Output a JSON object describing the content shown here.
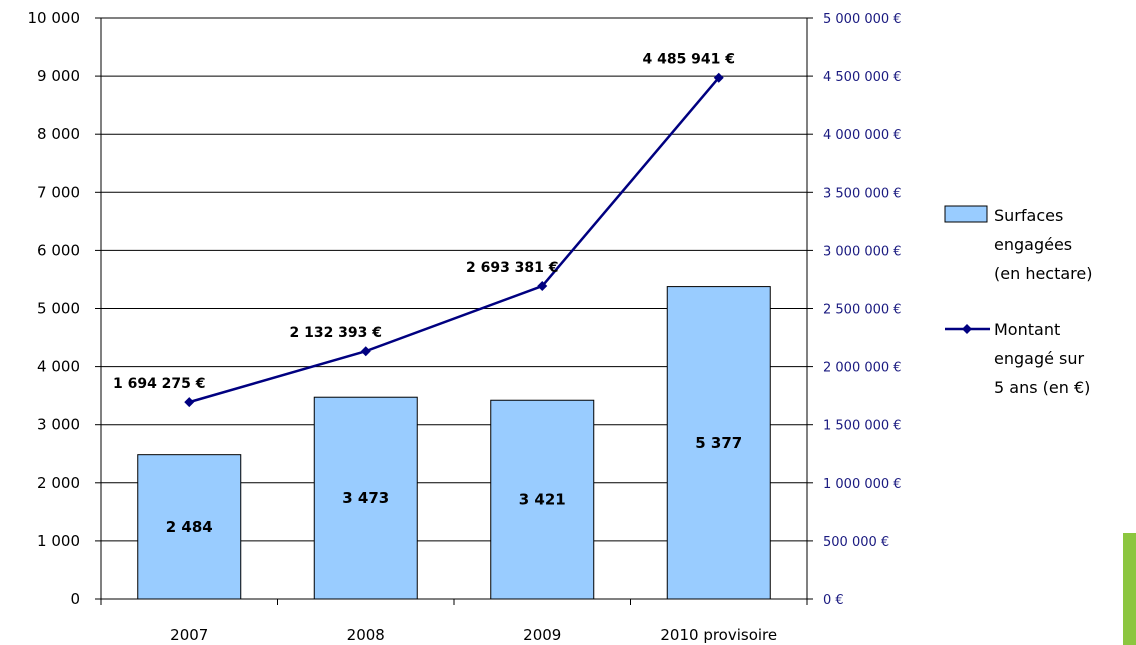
{
  "chart_data": {
    "type": "bar",
    "categories": [
      "2007",
      "2008",
      "2009",
      "2010 provisoire"
    ],
    "series": [
      {
        "name": "Surfaces engagées (en hectare)",
        "chart_type": "bar",
        "axis": "left",
        "values": [
          2484,
          3473,
          3421,
          5377
        ],
        "value_labels": [
          "2 484",
          "3 473",
          "3 421",
          "5 377"
        ]
      },
      {
        "name": "Montant engagé sur 5 ans (en €)",
        "chart_type": "line",
        "axis": "right",
        "values": [
          1694275,
          2132393,
          2693381,
          4485941
        ],
        "value_labels": [
          "1 694 275 €",
          "2 132 393 €",
          "2 693 381 €",
          "4 485 941 €"
        ]
      }
    ],
    "y_left": {
      "min": 0,
      "max": 10000,
      "step": 1000,
      "ticks": [
        "0",
        "1 000",
        "2 000",
        "3 000",
        "4 000",
        "5 000",
        "6 000",
        "7 000",
        "8 000",
        "9 000",
        "10 000"
      ]
    },
    "y_right": {
      "min": 0,
      "max": 5000000,
      "step": 500000,
      "ticks": [
        "0 €",
        "500 000 €",
        "1 000 000 €",
        "1 500 000 €",
        "2 000 000 €",
        "2 500 000 €",
        "3 000 000 €",
        "3 500 000 €",
        "4 000 000 €",
        "4 500 000 €",
        "5 000 000 €"
      ]
    },
    "legend": {
      "placement": "right",
      "entries": [
        [
          "Surfaces",
          "engagées",
          "(en hectare)"
        ],
        [
          "Montant",
          "engagé sur",
          "5 ans (en €)"
        ]
      ]
    },
    "grid": true,
    "title": "",
    "xlabel": "",
    "ylabel": ""
  },
  "colors": {
    "bar_fill": "#99ccff",
    "bar_stroke": "#000000",
    "line": "#000080",
    "right_axis_text": "#1a1a80",
    "grid": "#000000",
    "accent": "#8cc63f"
  }
}
